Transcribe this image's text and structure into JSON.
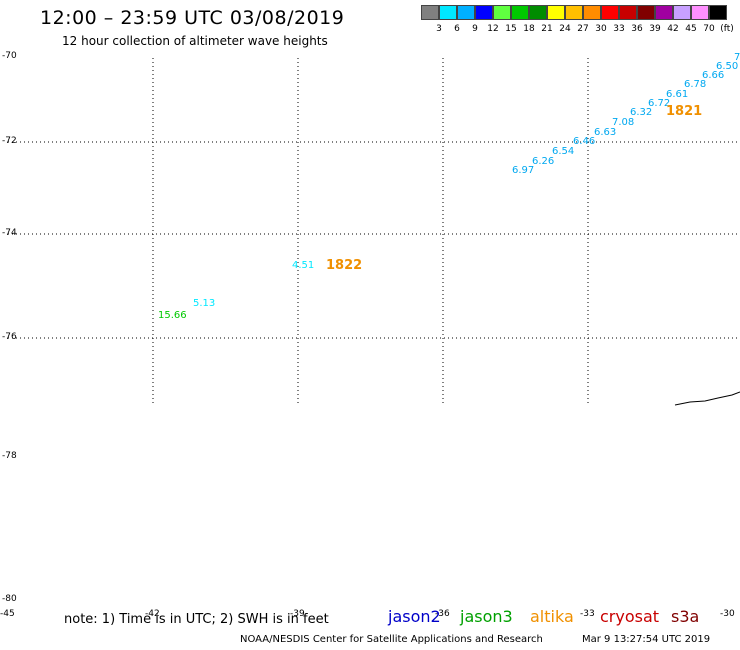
{
  "header": {
    "title": "12:00 – 23:59 UTC 03/08/2019",
    "subtitle": "12 hour collection of altimeter wave heights"
  },
  "scale": {
    "colors": [
      "#808080",
      "#00e8ff",
      "#00b0ff",
      "#0000ff",
      "#60ff40",
      "#00c800",
      "#008c00",
      "#ffff00",
      "#ffc000",
      "#ff8c00",
      "#ff0000",
      "#c80000",
      "#800000",
      "#a000a0",
      "#c8a0ff",
      "#ff90ff",
      "#000000"
    ],
    "labels": [
      "3",
      "6",
      "9",
      "12",
      "15",
      "18",
      "21",
      "24",
      "27",
      "30",
      "33",
      "36",
      "39",
      "42",
      "45",
      "70",
      "(ft)"
    ]
  },
  "grid": {
    "latitudes": [
      "-70",
      "-72",
      "-74",
      "-76",
      "-78",
      "-80"
    ],
    "longitudes": [
      "-45",
      "-42",
      "-39",
      "-36",
      "-33",
      "-30"
    ]
  },
  "waves": [
    {
      "value": "7",
      "color": "#00a8f0"
    },
    {
      "value": "6.50",
      "color": "#00a8f0"
    },
    {
      "value": "6.66",
      "color": "#00a8f0"
    },
    {
      "value": "6.78",
      "color": "#00a8f0"
    },
    {
      "value": "6.61",
      "color": "#00a8f0"
    },
    {
      "value": "6.72",
      "color": "#00a8f0"
    },
    {
      "value": "6.32",
      "color": "#00a8f0"
    },
    {
      "value": "7.08",
      "color": "#00a8f0"
    },
    {
      "value": "6.63",
      "color": "#00a8f0"
    },
    {
      "value": "6.46",
      "color": "#00a8f0"
    },
    {
      "value": "6.54",
      "color": "#00a8f0"
    },
    {
      "value": "6.26",
      "color": "#00a8f0"
    },
    {
      "value": "6.97",
      "color": "#00a8f0"
    },
    {
      "value": "4.51",
      "color": "#00e8ff"
    },
    {
      "value": "5.13",
      "color": "#00e8ff"
    },
    {
      "value": "15.66",
      "color": "#00c800"
    }
  ],
  "passes": [
    "1821",
    "1822"
  ],
  "footer": {
    "note": "note: 1) Time is in UTC; 2) SWH is in feet",
    "satellites": [
      {
        "name": "jason2",
        "color": "#0000c8"
      },
      {
        "name": "jason3",
        "color": "#00a000"
      },
      {
        "name": "altika",
        "color": "#f09000"
      },
      {
        "name": "cryosat",
        "color": "#c80000"
      },
      {
        "name": "s3a",
        "color": "#800000"
      }
    ],
    "credit": "NOAA/NESDIS Center for Satellite Applications and Research",
    "timestamp": "Mar  9 13:27:54 UTC 2019"
  }
}
